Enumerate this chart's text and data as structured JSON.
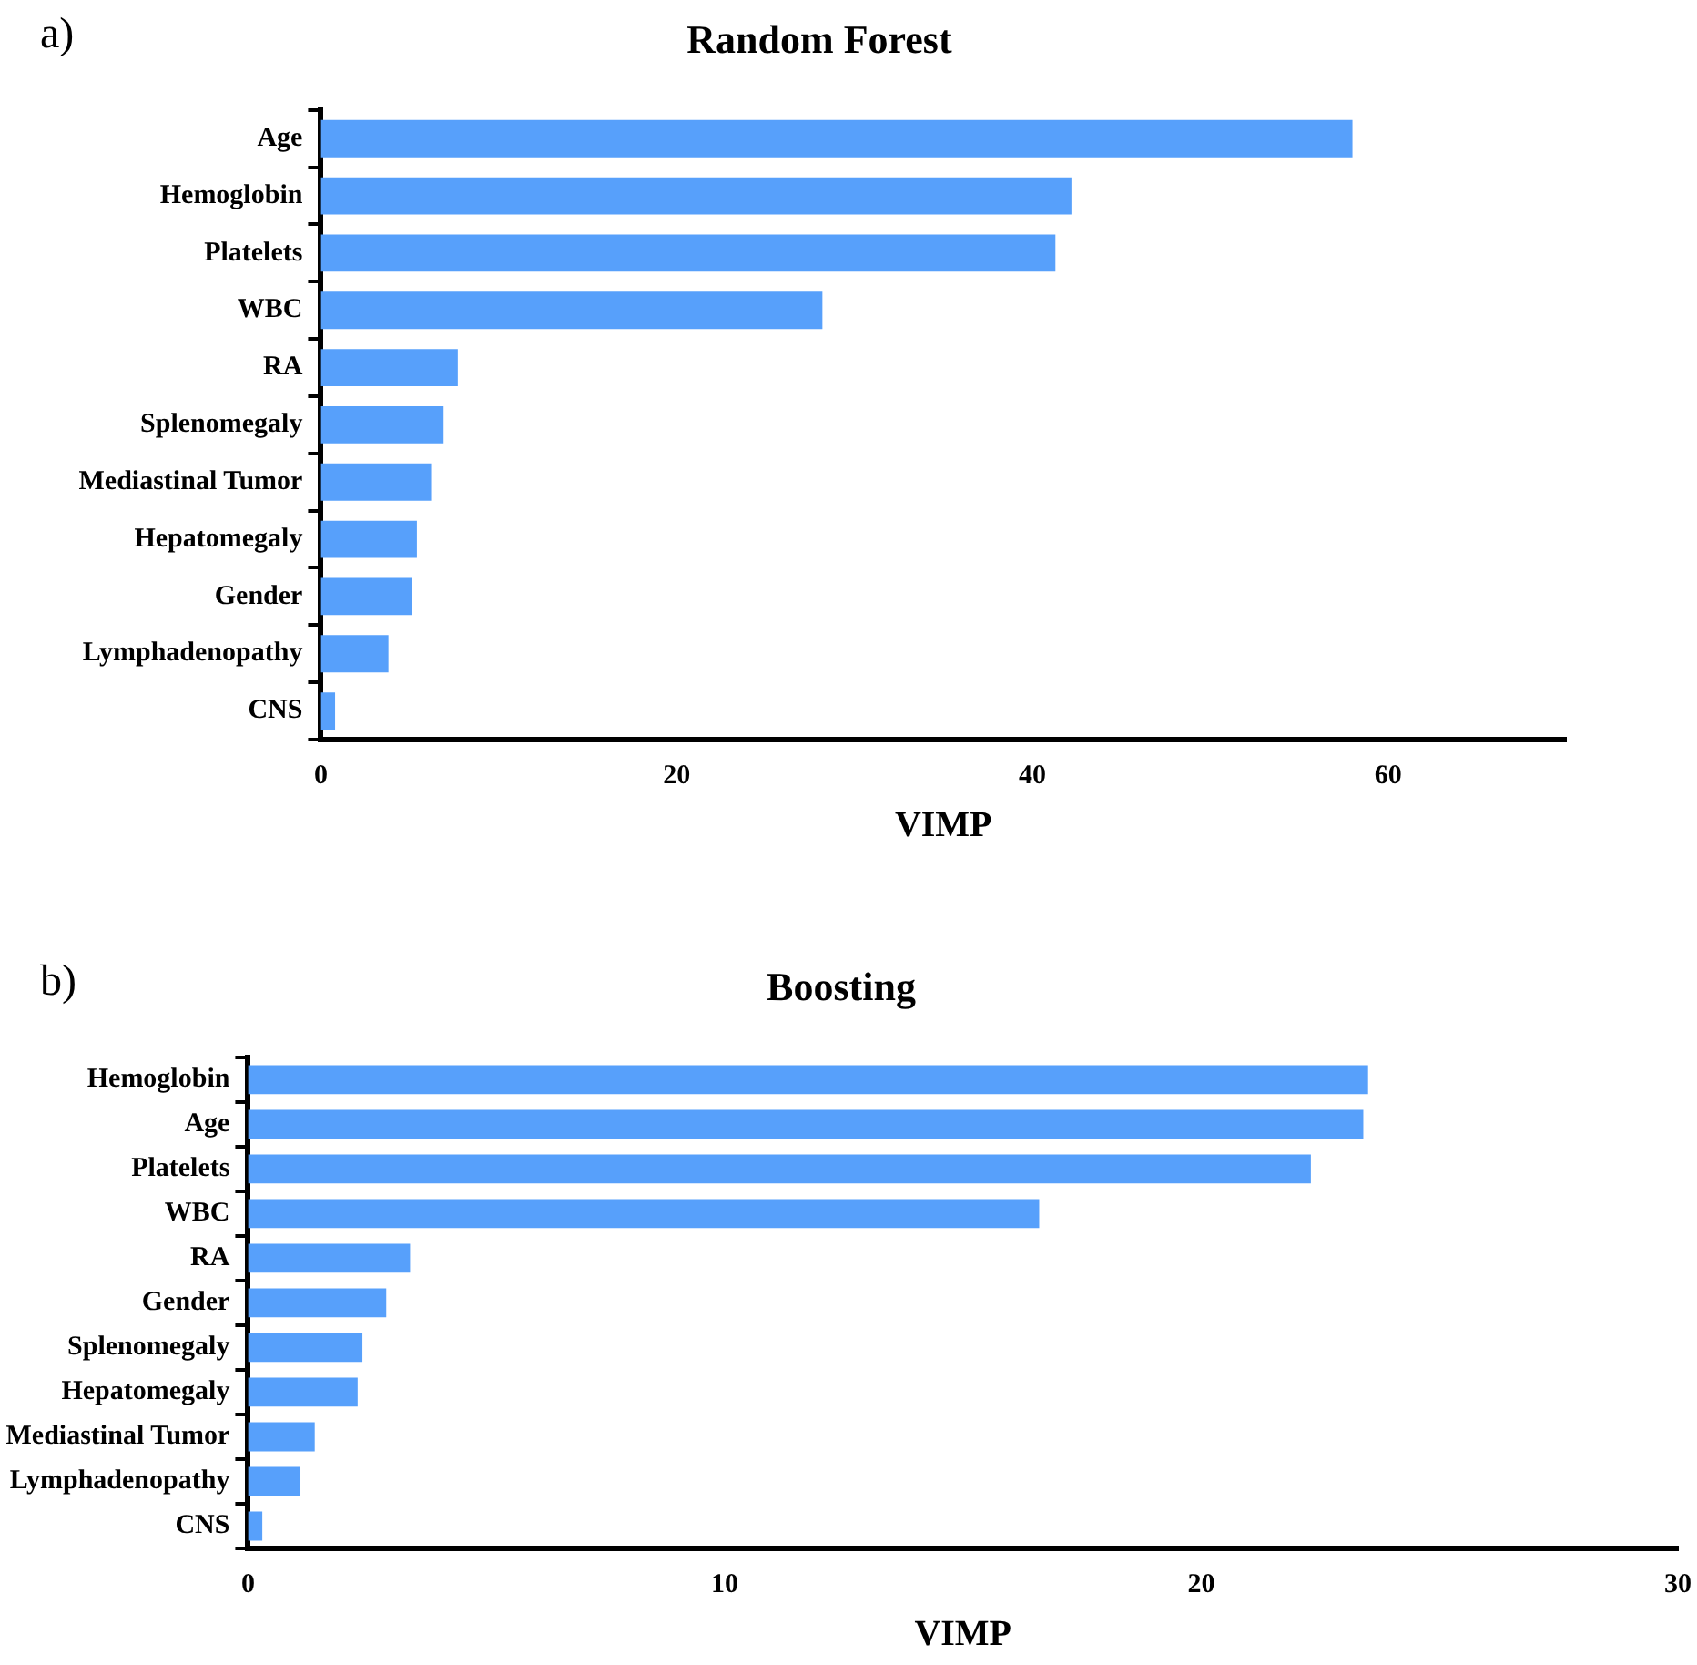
{
  "chart_data": [
    {
      "type": "bar",
      "orientation": "horizontal",
      "title": "Random Forest",
      "xlabel": "VIMP",
      "annotations": [
        "a)"
      ],
      "categories": [
        "Age",
        "Hemoglobin",
        "Platelets",
        "WBC",
        "RA",
        "Splenomegaly",
        "Mediastinal Tumor",
        "Hepatomegaly",
        "Gender",
        "Lymphadenopathy",
        "CNS"
      ],
      "values": [
        58.0,
        42.2,
        41.3,
        28.2,
        7.7,
        6.9,
        6.2,
        5.4,
        5.1,
        3.8,
        0.8
      ],
      "color": "#57a0fb",
      "xlim": [
        0,
        70
      ],
      "xticks": [
        0,
        20,
        40,
        60
      ],
      "grid": false,
      "legend": false
    },
    {
      "type": "bar",
      "orientation": "horizontal",
      "title": "Boosting",
      "xlabel": "VIMP",
      "annotations": [
        "b)"
      ],
      "categories": [
        "Hemoglobin",
        "Age",
        "Platelets",
        "WBC",
        "RA",
        "Gender",
        "Splenomegaly",
        "Hepatomegaly",
        "Mediastinal Tumor",
        "Lymphadenopathy",
        "CNS"
      ],
      "values": [
        23.5,
        23.4,
        22.3,
        16.6,
        3.4,
        2.9,
        2.4,
        2.3,
        1.4,
        1.1,
        0.3
      ],
      "color": "#57a0fb",
      "xlim": [
        0,
        30
      ],
      "xticks": [
        0,
        10,
        20,
        30
      ],
      "grid": false,
      "legend": false
    }
  ]
}
